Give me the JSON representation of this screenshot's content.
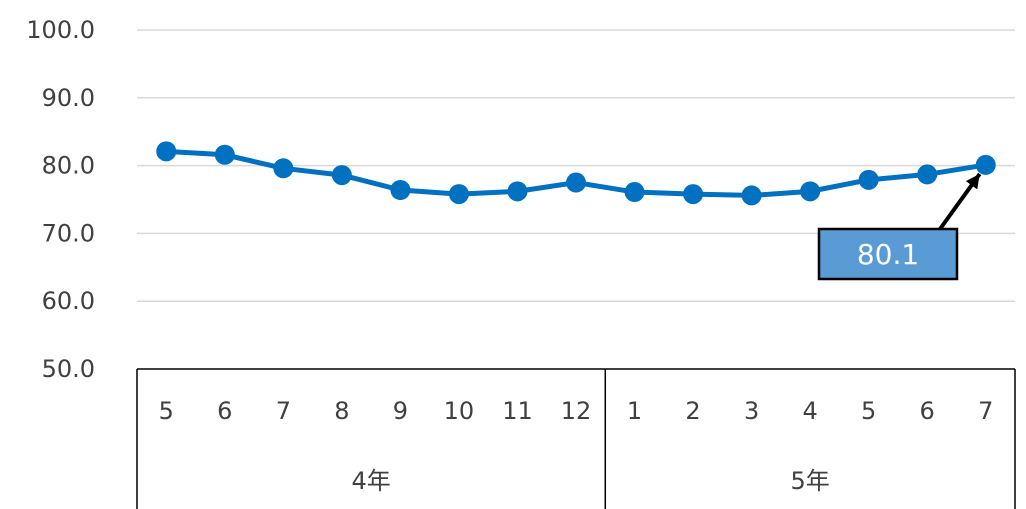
{
  "chart_data": {
    "type": "line",
    "title": "",
    "xlabel": "",
    "ylabel": "",
    "ylim": [
      50,
      100
    ],
    "y_ticks": [
      "100.0",
      "90.0",
      "80.0",
      "70.0",
      "60.0",
      "50.0"
    ],
    "grid": true,
    "categories": [
      "5",
      "6",
      "7",
      "8",
      "9",
      "10",
      "11",
      "12",
      "1",
      "2",
      "3",
      "4",
      "5",
      "6",
      "7"
    ],
    "groups": [
      {
        "label": "4年",
        "count": 8
      },
      {
        "label": "5年",
        "count": 7
      }
    ],
    "series": [
      {
        "color": "#0070C0",
        "values": [
          82.1,
          81.6,
          79.6,
          78.6,
          76.4,
          75.8,
          76.2,
          77.5,
          76.1,
          75.8,
          75.6,
          76.2,
          77.9,
          78.7,
          80.1
        ]
      }
    ],
    "annotation": {
      "text": "80.1",
      "point_index": 14,
      "box_color": "#5B9BD5"
    }
  }
}
